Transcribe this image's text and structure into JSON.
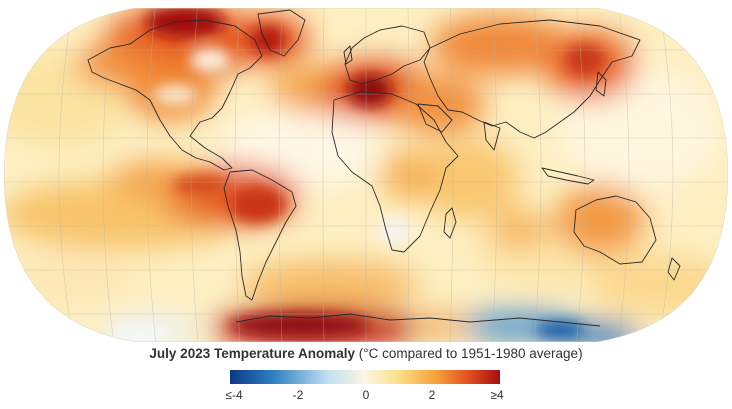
{
  "map": {
    "projection": "Robinson-like world map",
    "layers": [
      "surface temperature anomaly heatmap",
      "coastline outlines",
      "graticule grid"
    ]
  },
  "caption": {
    "title": "July 2023 Temperature Anomaly",
    "subtitle": "(°C compared to 1951-1980 average)"
  },
  "legend": {
    "ticks": [
      {
        "label": "≤-4",
        "value": -4
      },
      {
        "label": "-2",
        "value": -2
      },
      {
        "label": "0",
        "value": 0
      },
      {
        "label": "2",
        "value": 2
      },
      {
        "label": "≥4",
        "value": 4
      }
    ],
    "colors": [
      "#0b3a84",
      "#2e7fc0",
      "#bfe0f2",
      "#fbf6e4",
      "#fce08a",
      "#f6a23c",
      "#e4521f",
      "#a30f12"
    ]
  }
}
